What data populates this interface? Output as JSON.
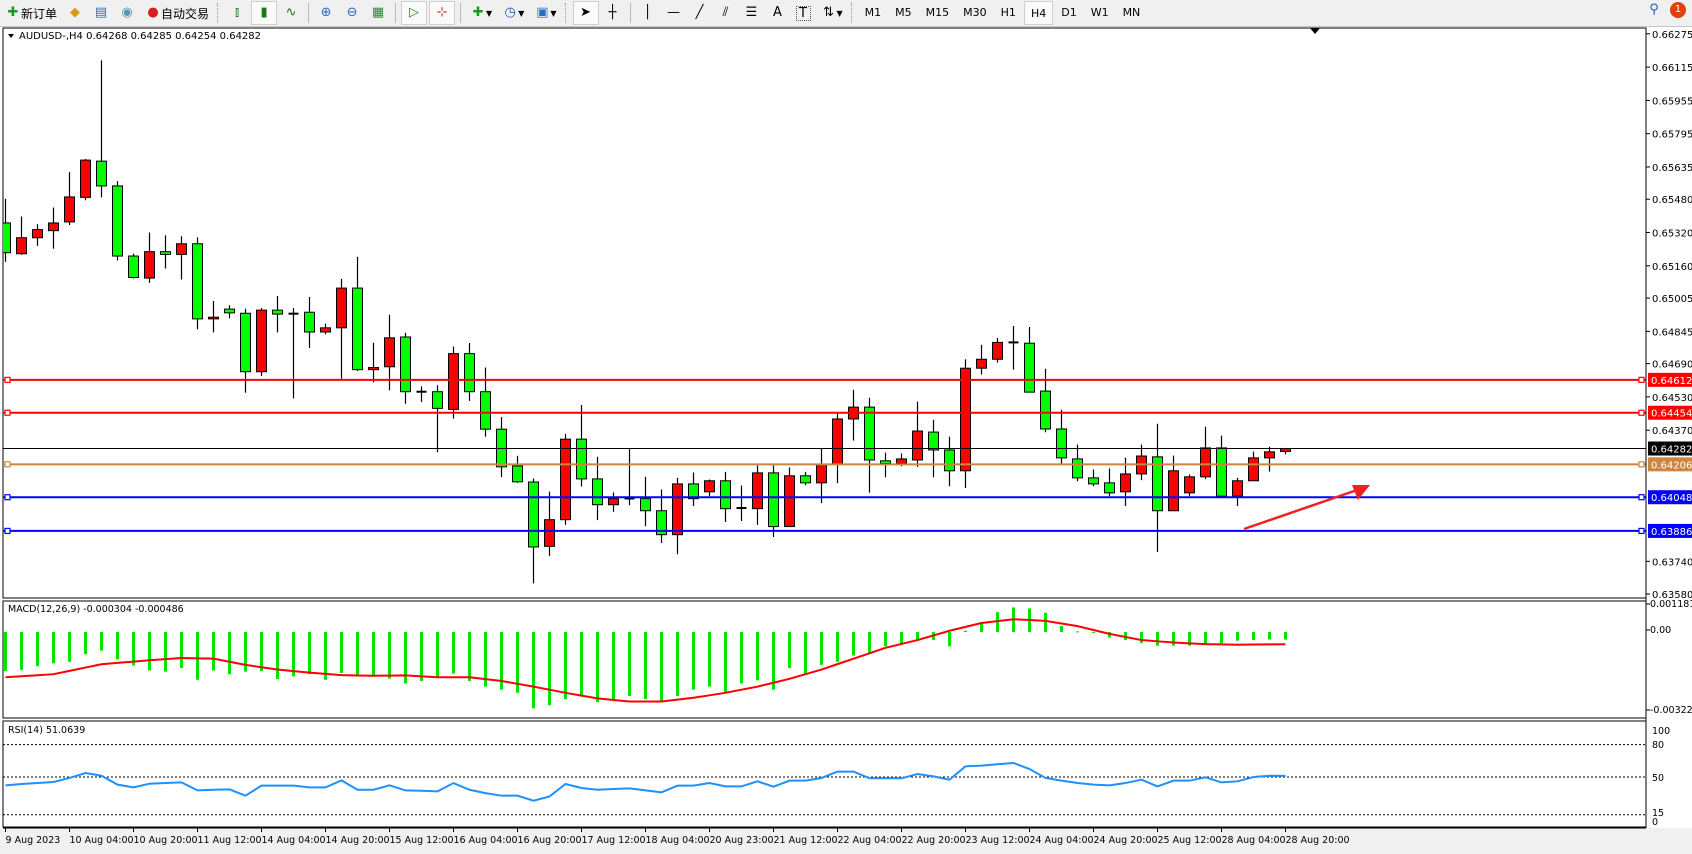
{
  "toolbar": {
    "new_order": "新订单",
    "auto_trading": "自动交易",
    "timeframes": [
      "M1",
      "M5",
      "M15",
      "M30",
      "H1",
      "H4",
      "D1",
      "W1",
      "MN"
    ],
    "active_timeframe": "H4",
    "notification_count": "1"
  },
  "chart": {
    "header": "AUDUSD-,H4  0.64268 0.64285 0.64254 0.64282",
    "colors": {
      "bull": "#ff0000",
      "bear": "#00ff00",
      "background": "#ffffff"
    },
    "price_ticks": [
      "0.66275",
      "0.66115",
      "0.65955",
      "0.65795",
      "0.65635",
      "0.65480",
      "0.65320",
      "0.65160",
      "0.65005",
      "0.64845",
      "0.64690",
      "0.64530",
      "0.64370",
      "0.63740",
      "0.63580"
    ],
    "levels": [
      {
        "price": "0.64612",
        "color": "#ff0000"
      },
      {
        "price": "0.64454",
        "color": "#ff0000"
      },
      {
        "price": "0.64282",
        "color": "#000000"
      },
      {
        "price": "0.64206",
        "color": "#cd853f"
      },
      {
        "price": "0.64048",
        "color": "#0000ff"
      },
      {
        "price": "0.63886",
        "color": "#0000ff"
      }
    ],
    "time_labels": [
      "9 Aug 2023",
      "10 Aug 04:00",
      "10 Aug 20:00",
      "11 Aug 12:00",
      "14 Aug 04:00",
      "14 Aug 20:00",
      "15 Aug 12:00",
      "16 Aug 04:00",
      "16 Aug 20:00",
      "17 Aug 12:00",
      "18 Aug 04:00",
      "20 Aug 23:00",
      "21 Aug 12:00",
      "22 Aug 04:00",
      "22 Aug 20:00",
      "23 Aug 12:00",
      "24 Aug 04:00",
      "24 Aug 20:00",
      "25 Aug 12:00",
      "28 Aug 04:00",
      "28 Aug 20:00"
    ],
    "arrow_color": "#ee2222"
  },
  "macd": {
    "label": "MACD(12,26,9) -0.000304 -0.000486",
    "axis": [
      "0.001181",
      "0.00",
      "-0.003225"
    ]
  },
  "rsi": {
    "label": "RSI(14) 51.0639",
    "axis": [
      "100",
      "80",
      "50",
      "15",
      "0"
    ]
  },
  "chart_data": {
    "type": "candlestick",
    "symbol": "AUDUSD-",
    "timeframe": "H4",
    "ylim": [
      0.6358,
      0.66275
    ],
    "ohlc": [
      [
        0.65366,
        0.65482,
        0.65179,
        0.65223
      ],
      [
        0.65218,
        0.65397,
        0.65213,
        0.65295
      ],
      [
        0.65295,
        0.6536,
        0.65256,
        0.65334
      ],
      [
        0.65329,
        0.6544,
        0.65242,
        0.65366
      ],
      [
        0.65371,
        0.6561,
        0.65356,
        0.65491
      ],
      [
        0.65489,
        0.65673,
        0.65475,
        0.65668
      ],
      [
        0.65663,
        0.66147,
        0.65489,
        0.65544
      ],
      [
        0.65544,
        0.65567,
        0.65186,
        0.65207
      ],
      [
        0.65207,
        0.65218,
        0.65099,
        0.65104
      ],
      [
        0.65101,
        0.6532,
        0.65078,
        0.65228
      ],
      [
        0.65228,
        0.65307,
        0.65147,
        0.65215
      ],
      [
        0.65215,
        0.65302,
        0.65094,
        0.65266
      ],
      [
        0.65266,
        0.65297,
        0.64855,
        0.64905
      ],
      [
        0.64905,
        0.64991,
        0.6484,
        0.64913
      ],
      [
        0.64952,
        0.64971,
        0.64908,
        0.64934
      ],
      [
        0.64932,
        0.64954,
        0.6455,
        0.64651
      ],
      [
        0.64651,
        0.64957,
        0.6463,
        0.64947
      ],
      [
        0.64947,
        0.65015,
        0.6484,
        0.64928
      ],
      [
        0.64928,
        0.64957,
        0.64523,
        0.6493
      ],
      [
        0.64937,
        0.6501,
        0.64765,
        0.64842
      ],
      [
        0.64842,
        0.64882,
        0.64831,
        0.64862
      ],
      [
        0.64862,
        0.65097,
        0.64617,
        0.65053
      ],
      [
        0.65053,
        0.65203,
        0.64654,
        0.64661
      ],
      [
        0.64661,
        0.6479,
        0.64601,
        0.64671
      ],
      [
        0.64675,
        0.64925,
        0.64562,
        0.64814
      ],
      [
        0.64818,
        0.64838,
        0.64497,
        0.64555
      ],
      [
        0.64555,
        0.64581,
        0.64506,
        0.64555
      ],
      [
        0.64555,
        0.64586,
        0.64264,
        0.64475
      ],
      [
        0.6447,
        0.64772,
        0.64426,
        0.64738
      ],
      [
        0.64738,
        0.64789,
        0.64511,
        0.64555
      ],
      [
        0.64555,
        0.64671,
        0.64339,
        0.64375
      ],
      [
        0.64375,
        0.64433,
        0.64145,
        0.64194
      ],
      [
        0.64198,
        0.64247,
        0.64117,
        0.64122
      ],
      [
        0.64121,
        0.64138,
        0.63634,
        0.63809
      ],
      [
        0.63812,
        0.64075,
        0.63766,
        0.6394
      ],
      [
        0.6394,
        0.64352,
        0.63915,
        0.64327
      ],
      [
        0.64327,
        0.64491,
        0.641,
        0.64136
      ],
      [
        0.64136,
        0.64242,
        0.63938,
        0.64012
      ],
      [
        0.64012,
        0.64071,
        0.63978,
        0.64041
      ],
      [
        0.64041,
        0.64279,
        0.6401,
        0.64042
      ],
      [
        0.64041,
        0.64146,
        0.63909,
        0.63983
      ],
      [
        0.63983,
        0.64085,
        0.63828,
        0.63868
      ],
      [
        0.63868,
        0.64141,
        0.63774,
        0.64112
      ],
      [
        0.64112,
        0.64167,
        0.64006,
        0.64041
      ],
      [
        0.64074,
        0.64133,
        0.64053,
        0.64127
      ],
      [
        0.64127,
        0.6417,
        0.63929,
        0.63993
      ],
      [
        0.63993,
        0.64104,
        0.63934,
        0.63996
      ],
      [
        0.63993,
        0.642,
        0.63915,
        0.64165
      ],
      [
        0.64165,
        0.642,
        0.63857,
        0.63907
      ],
      [
        0.63907,
        0.64191,
        0.63905,
        0.64151
      ],
      [
        0.64151,
        0.6417,
        0.64106,
        0.64117
      ],
      [
        0.64117,
        0.6428,
        0.6402,
        0.64203
      ],
      [
        0.64208,
        0.64452,
        0.64116,
        0.64424
      ],
      [
        0.64424,
        0.64564,
        0.6432,
        0.64481
      ],
      [
        0.64481,
        0.64526,
        0.6407,
        0.64227
      ],
      [
        0.64223,
        0.64262,
        0.64144,
        0.6421
      ],
      [
        0.6421,
        0.64258,
        0.64197,
        0.64232
      ],
      [
        0.64227,
        0.64507,
        0.64194,
        0.64366
      ],
      [
        0.64361,
        0.6442,
        0.64144,
        0.64275
      ],
      [
        0.64275,
        0.64339,
        0.64101,
        0.64175
      ],
      [
        0.64175,
        0.64711,
        0.64092,
        0.64668
      ],
      [
        0.64668,
        0.6478,
        0.64638,
        0.64711
      ],
      [
        0.64711,
        0.64813,
        0.64695,
        0.64792
      ],
      [
        0.64792,
        0.64871,
        0.64661,
        0.64789
      ],
      [
        0.64788,
        0.64866,
        0.64553,
        0.64553
      ],
      [
        0.64558,
        0.64665,
        0.6436,
        0.64376
      ],
      [
        0.64376,
        0.64468,
        0.6421,
        0.64237
      ],
      [
        0.64232,
        0.64301,
        0.64125,
        0.64141
      ],
      [
        0.64141,
        0.64181,
        0.64101,
        0.64112
      ],
      [
        0.64117,
        0.64186,
        0.64053,
        0.64069
      ],
      [
        0.64074,
        0.64238,
        0.64006,
        0.6416
      ],
      [
        0.6416,
        0.64301,
        0.6413,
        0.64246
      ],
      [
        0.64242,
        0.64401,
        0.63785,
        0.63983
      ],
      [
        0.63983,
        0.64248,
        0.63983,
        0.64175
      ],
      [
        0.64069,
        0.64157,
        0.64053,
        0.64146
      ],
      [
        0.64146,
        0.64387,
        0.64135,
        0.64285
      ],
      [
        0.64285,
        0.64344,
        0.64053,
        0.64053
      ],
      [
        0.64053,
        0.64141,
        0.64006,
        0.64127
      ],
      [
        0.64127,
        0.64267,
        0.64127,
        0.64237
      ],
      [
        0.64237,
        0.64291,
        0.64171,
        0.64266
      ],
      [
        0.64268,
        0.64285,
        0.64254,
        0.64282
      ]
    ],
    "macd_histogram": [
      -0.001557,
      -0.001508,
      -0.00136,
      -0.001248,
      -0.001187,
      -0.000878,
      -0.000741,
      -0.001088,
      -0.001335,
      -0.001533,
      -0.001582,
      -0.001434,
      -0.001904,
      -0.001533,
      -0.001681,
      -0.001582,
      -0.001557,
      -0.001879,
      -0.001768,
      -0.001681,
      -0.001904,
      -0.001632,
      -0.001706,
      -0.001768,
      -0.001854,
      -0.002052,
      -0.001953,
      -0.001829,
      -0.001656,
      -0.001953,
      -0.002175,
      -0.002299,
      -0.002423,
      -0.00304,
      -0.002917,
      -0.00267,
      -0.002546,
      -0.002793,
      -0.00267,
      -0.002546,
      -0.00267,
      -0.002793,
      -0.002546,
      -0.002299,
      -0.002175,
      -0.002423,
      -0.002052,
      -0.001928,
      -0.002299,
      -0.001434,
      -0.001681,
      -0.00131,
      -0.001187,
      -0.000939,
      -0.000816,
      -0.000569,
      -0.000445,
      -0.000297,
      -0.000321,
      -0.000569,
      4.9e-05,
      0.000396,
      0.000791,
      0.000977,
      0.000939,
      0.000766,
      0.000247,
      2.5e-05,
      0.0,
      -0.000222,
      -0.000321,
      -0.000445,
      -0.000544,
      -0.000544,
      -0.000544,
      -0.000507,
      -0.000445,
      -0.000346,
      -0.000321,
      -0.000297,
      -0.000304
    ],
    "macd_signal": [
      -0.001805,
      -0.001764,
      -0.001722,
      -0.001681,
      -0.001549,
      -0.001417,
      -0.001285,
      -0.001232,
      -0.001178,
      -0.001125,
      -0.001082,
      -0.001038,
      -0.00105,
      -0.001063,
      -0.001187,
      -0.00131,
      -0.001403,
      -0.001496,
      -0.001558,
      -0.001619,
      -0.001669,
      -0.001718,
      -0.001731,
      -0.001743,
      -0.001737,
      -0.00173,
      -0.001768,
      -0.001805,
      -0.001805,
      -0.001805,
      -0.001879,
      -0.001953,
      -0.002064,
      -0.002175,
      -0.002299,
      -0.002423,
      -0.002534,
      -0.002645,
      -0.002707,
      -0.002769,
      -0.002769,
      -0.002769,
      -0.002695,
      -0.00262,
      -0.002522,
      -0.002423,
      -0.002299,
      -0.002175,
      -0.002021,
      -0.001866,
      -0.001681,
      -0.001496,
      -0.00128,
      -0.001063,
      -0.000847,
      -0.00063,
      -0.000476,
      -0.000321,
      -0.000136,
      4.9e-05,
      0.000204,
      0.000358,
      0.000433,
      0.000507,
      0.000476,
      0.000445,
      0.00034,
      0.000235,
      8.1e-05,
      -7.4e-05,
      -0.000198,
      -0.000321,
      -0.000371,
      -0.00042,
      -0.000451,
      -0.000482,
      -0.000495,
      -0.000507,
      -0.0005,
      -0.000493,
      -0.000486
    ],
    "rsi": [
      42.3,
      43.5,
      44.4,
      45.4,
      49.1,
      53.7,
      51.2,
      42.9,
      40.4,
      43.8,
      44.4,
      45.0,
      37.6,
      38.2,
      38.5,
      32.7,
      42.0,
      42.0,
      42.0,
      40.4,
      40.4,
      46.9,
      38.2,
      38.2,
      42.3,
      37.6,
      37.3,
      36.7,
      44.4,
      38.2,
      35.1,
      32.7,
      32.7,
      28.0,
      32.0,
      43.5,
      39.8,
      38.2,
      38.9,
      39.5,
      37.6,
      35.8,
      42.0,
      42.0,
      44.4,
      41.3,
      41.3,
      46.0,
      41.0,
      46.6,
      46.6,
      49.1,
      55.0,
      55.0,
      48.8,
      48.8,
      48.8,
      52.8,
      50.6,
      47.5,
      59.9,
      60.5,
      61.8,
      63.0,
      57.4,
      49.1,
      46.6,
      44.4,
      42.9,
      42.3,
      44.4,
      47.5,
      41.3,
      46.6,
      46.6,
      49.7,
      45.0,
      46.0,
      50.0,
      51.2,
      51.06
    ],
    "rsi_levels": [
      80,
      50,
      15
    ]
  }
}
